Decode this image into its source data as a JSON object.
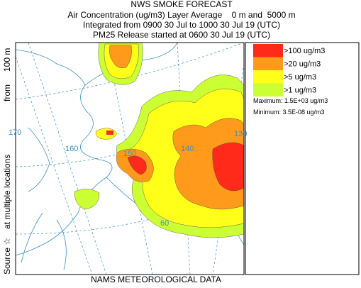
{
  "header": {
    "title": "NWS SMOKE FORECAST",
    "lines": [
      "Air Concentration (ug/m3) Layer Average    0 m and  5000 m",
      "Integrated from 0900 30 Jul to 1000 30 Jul 19 (UTC)",
      "PM25 Release started at 0600 30 Jul 19 (UTC)"
    ]
  },
  "side_label": [
    "Source ☆",
    "at multiple locations",
    "from",
    "100 m"
  ],
  "legend": {
    "items": [
      {
        "label": ">100 ug/m3",
        "color": "#ff2a1a"
      },
      {
        "label": ">20 ug/m3",
        "color": "#ff9a1a"
      },
      {
        "label": ">5 ug/m3",
        "color": "#ffff1a"
      },
      {
        "label": ">1 ug/m3",
        "color": "#ccff33"
      }
    ],
    "maximum": "Maximum: 1.5E+03 ug/m3",
    "minimum": "Minimum: 3.5E-08 ug/m3"
  },
  "map_labels": [
    "170",
    "160",
    "150",
    "140",
    "130",
    "60"
  ],
  "footer": "NAMS METEOROLOGICAL DATA"
}
